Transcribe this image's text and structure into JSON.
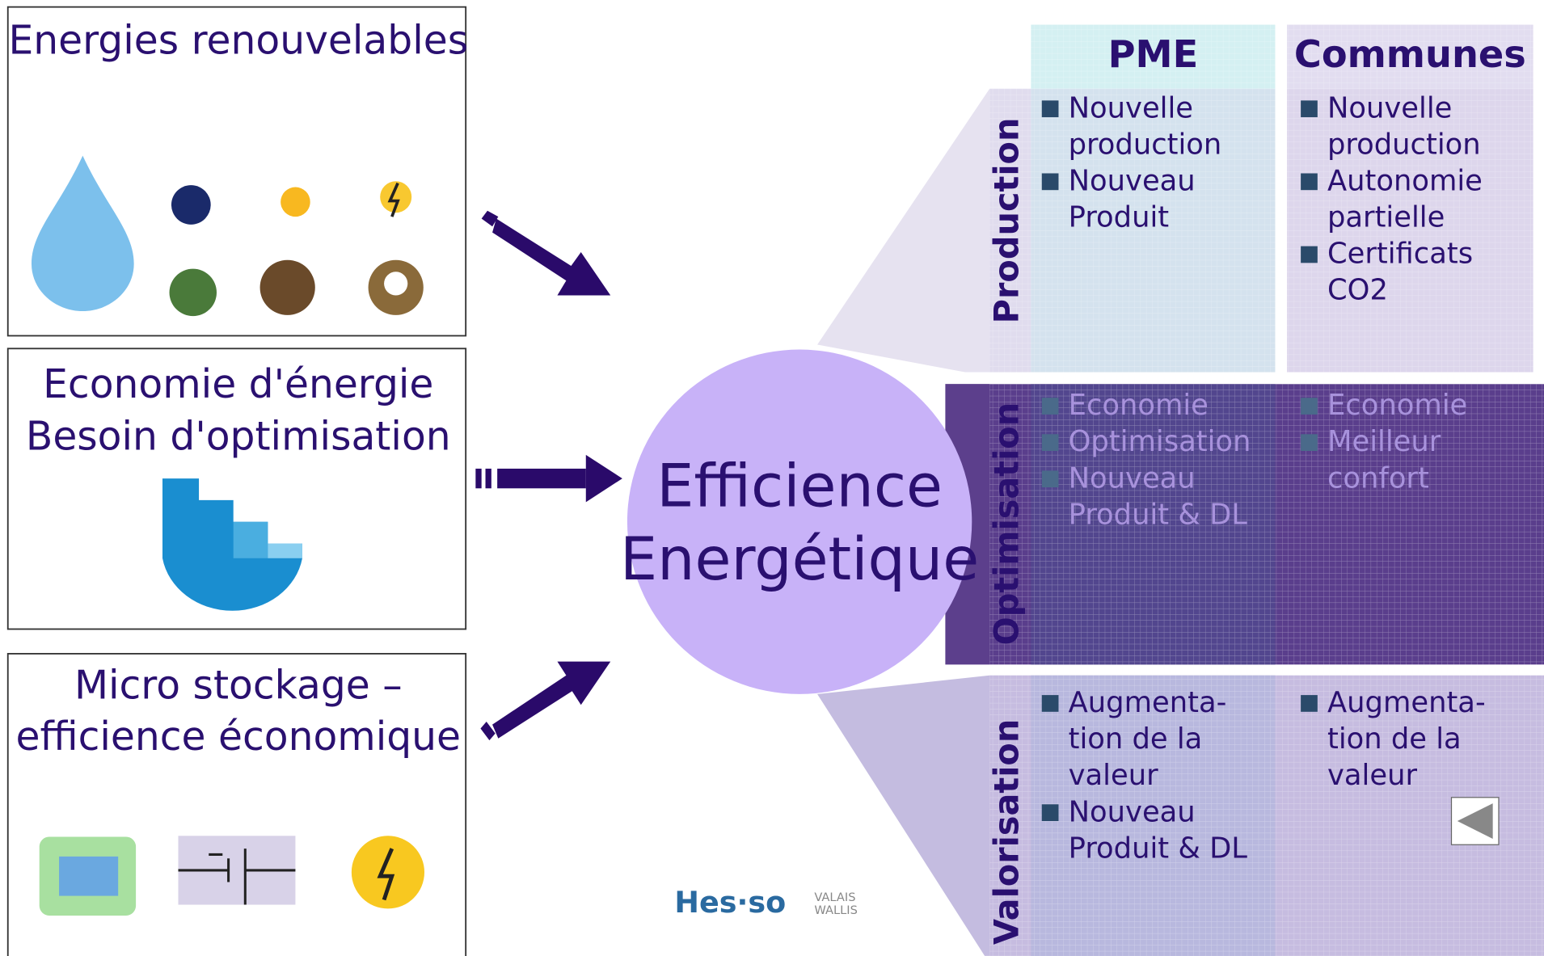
{
  "sources": [
    {
      "lines": [
        "Energies renouvelables"
      ]
    },
    {
      "lines": [
        "Economie d'énergie",
        "Besoin d'optimisation"
      ]
    },
    {
      "lines": [
        "Micro stockage –",
        "efficience économique"
      ]
    }
  ],
  "center": [
    "Efficience",
    "Energétique"
  ],
  "columns": [
    "PME",
    "Communes"
  ],
  "rows": [
    {
      "label": "Production",
      "cells": [
        [
          [
            "Nouvelle",
            "production"
          ],
          [
            "Nouveau",
            "Produit"
          ]
        ],
        [
          [
            "Nouvelle",
            "production"
          ],
          [
            "Autonomie",
            "partielle"
          ],
          [
            "Certificats",
            "CO2"
          ]
        ]
      ]
    },
    {
      "label": "Optimisation",
      "cells": [
        [
          [
            "Economie"
          ],
          [
            "Optimisation"
          ],
          [
            "Nouveau",
            "Produit & DL"
          ]
        ],
        [
          [
            "Economie"
          ],
          [
            "Meilleur",
            "confort"
          ]
        ]
      ]
    },
    {
      "label": "Valorisation",
      "cells": [
        [
          [
            "Augmenta-",
            "tion de la",
            "valeur"
          ],
          [
            "Nouveau",
            "Produit & DL"
          ]
        ],
        [
          [
            "Augmenta-",
            "tion de la",
            "valeur"
          ]
        ]
      ]
    }
  ],
  "logo": {
    "brand": "Hes·so",
    "region": [
      "VALAIS",
      "WALLIS"
    ]
  }
}
